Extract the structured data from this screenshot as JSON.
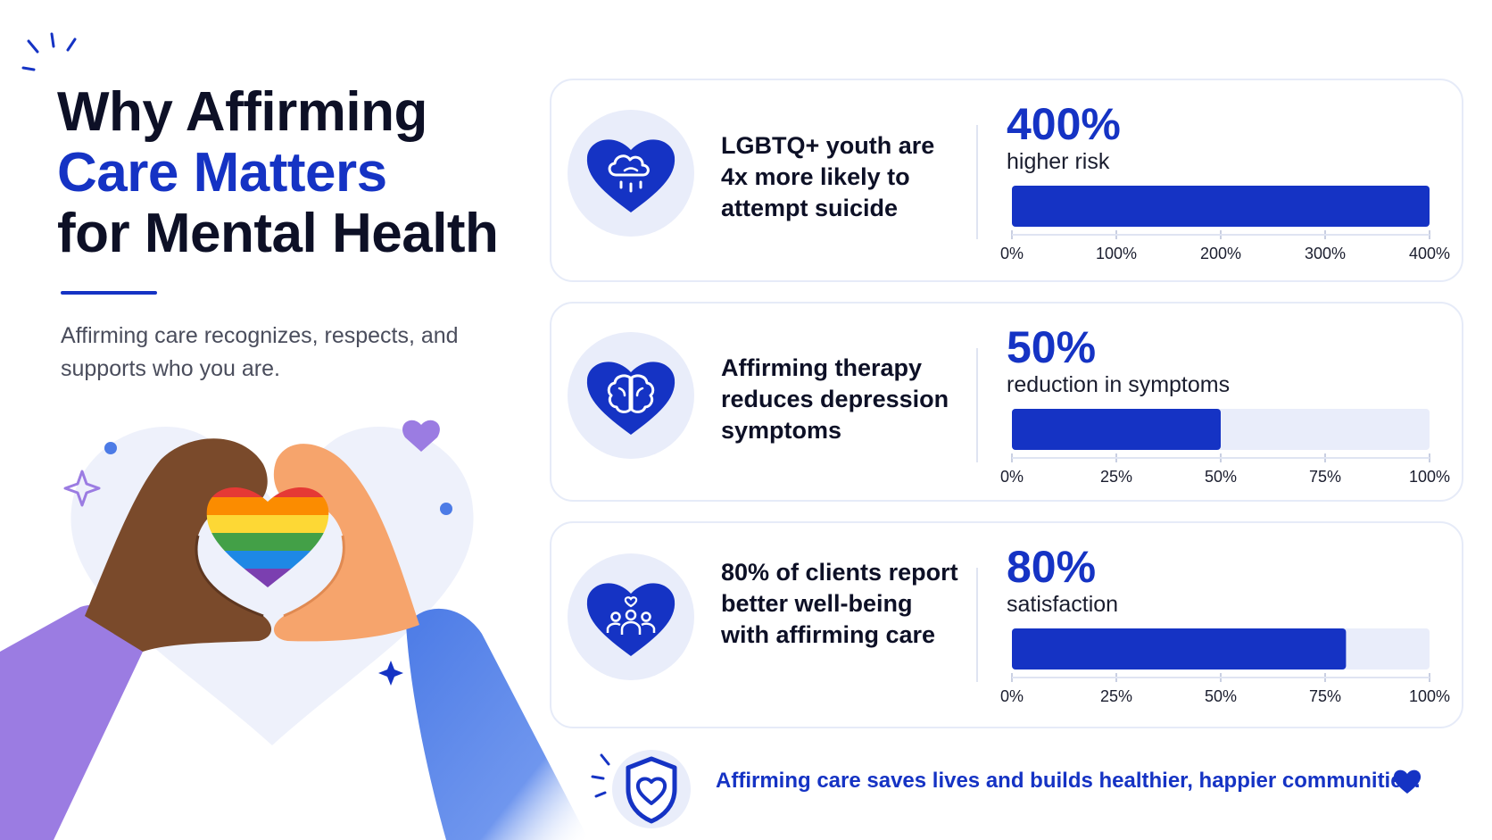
{
  "header": {
    "title_line1": "Why Affirming",
    "title_line2": "Care Matters",
    "title_line3": "for Mental Health",
    "subtitle": "Affirming care recognizes, respects, and supports who you are."
  },
  "icons": {
    "card1": "heart-cloud-rain-icon",
    "card2": "heart-brain-icon",
    "card3": "heart-group-icon",
    "footer": "shield-heart-icon",
    "footer_end": "heart-icon"
  },
  "colors": {
    "accent": "#1533c4",
    "track": "#e9edfa",
    "text": "#0d1026"
  },
  "chart_data": [
    {
      "type": "bar",
      "statement": "LGBTQ+ youth are 4x more likely to attempt suicide",
      "big_value": "400%",
      "caption": "higher risk",
      "values": [
        400
      ],
      "xlim": [
        0,
        400
      ],
      "ticks": [
        "0%",
        "100%",
        "200%",
        "300%",
        "400%"
      ]
    },
    {
      "type": "bar",
      "statement": "Affirming therapy reduces depression symptoms",
      "big_value": "50%",
      "caption": "reduction in symptoms",
      "values": [
        50
      ],
      "xlim": [
        0,
        100
      ],
      "ticks": [
        "0%",
        "25%",
        "50%",
        "75%",
        "100%"
      ]
    },
    {
      "type": "bar",
      "statement": "80% of clients report better well-being with affirming care",
      "big_value": "80%",
      "caption": "satisfaction",
      "values": [
        80
      ],
      "xlim": [
        0,
        100
      ],
      "ticks": [
        "0%",
        "25%",
        "50%",
        "75%",
        "100%"
      ]
    }
  ],
  "footer": {
    "text": "Affirming care saves lives and builds healthier, happier communities."
  }
}
